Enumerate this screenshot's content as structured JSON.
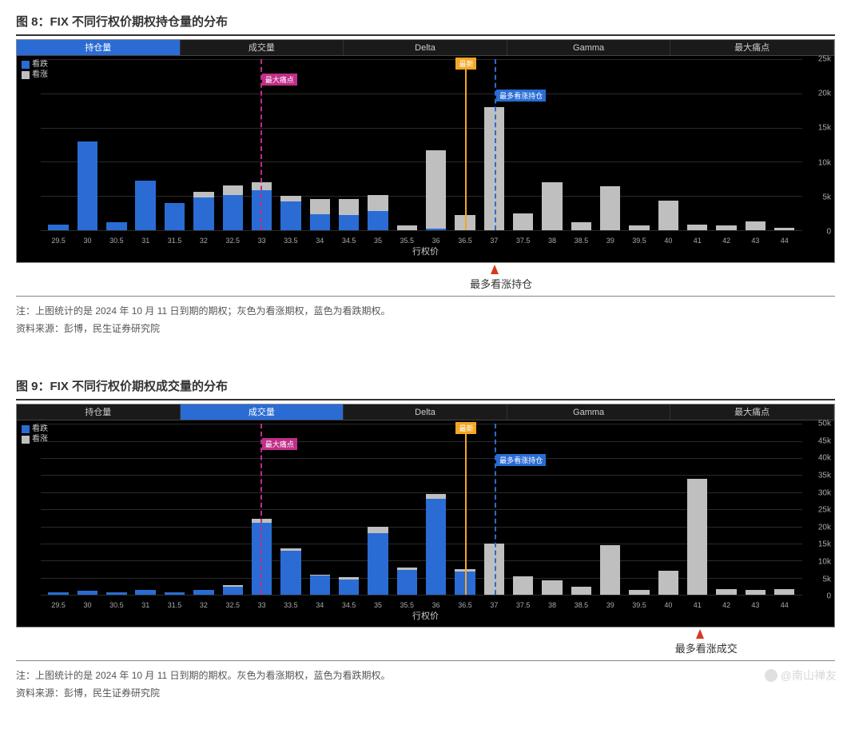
{
  "watermark": "@南山禅友",
  "colors": {
    "put": "#2a6cd4",
    "call": "#bfbfbf",
    "bg": "#000000",
    "grid": "#2a2a2a",
    "axis_text": "#aaaaaa",
    "max_pain_line": "#c02f8a",
    "latest_line": "#f5a623",
    "most_call_line": "#2a6cd4"
  },
  "tabs": [
    "持仓量",
    "成交量",
    "Delta",
    "Gamma",
    "最大痛点"
  ],
  "legend": {
    "put": "看跌",
    "call": "看涨"
  },
  "x_axis_label": "行权价",
  "fig8": {
    "title": "图 8：FIX 不同行权价期权持仓量的分布",
    "active_tab": 0,
    "y_max": 25000,
    "y_ticks": [
      0,
      5000,
      10000,
      15000,
      20000,
      25000
    ],
    "y_tick_labels": [
      "0",
      "5k",
      "10k",
      "15k",
      "20k",
      "25k"
    ],
    "strikes": [
      "29.5",
      "30",
      "30.5",
      "31",
      "31.5",
      "32",
      "32.5",
      "33",
      "33.5",
      "34",
      "34.5",
      "35",
      "35.5",
      "36",
      "36.5",
      "37",
      "37.5",
      "38",
      "38.5",
      "39",
      "39.5",
      "40",
      "41",
      "42",
      "43",
      "44"
    ],
    "put": [
      800,
      13000,
      1200,
      7200,
      4000,
      4800,
      5200,
      5800,
      4200,
      2300,
      2200,
      2800,
      0,
      200,
      0,
      0,
      0,
      0,
      0,
      0,
      0,
      0,
      0,
      0,
      0,
      0
    ],
    "call": [
      0,
      0,
      0,
      0,
      0,
      800,
      1400,
      1200,
      800,
      2200,
      2300,
      2300,
      700,
      11500,
      2200,
      18000,
      2400,
      7000,
      1200,
      6400,
      700,
      4300,
      800,
      700,
      1300,
      400
    ],
    "markers": {
      "max_pain": {
        "strike": "33",
        "label": "最大痛点"
      },
      "latest": {
        "strike": "36.5",
        "label": "最新"
      },
      "most_call": {
        "strike": "37",
        "label": "最多看涨持仓"
      }
    },
    "callout": {
      "strike": "37",
      "text": "最多看涨持仓"
    },
    "note": "注：上图统计的是 2024 年 10 月 11 日到期的期权；灰色为看涨期权，蓝色为看跌期权。",
    "source": "资料来源：彭博，民生证券研究院"
  },
  "fig9": {
    "title": "图 9：FIX 不同行权价期权成交量的分布",
    "active_tab": 1,
    "y_max": 50000,
    "y_ticks": [
      0,
      5000,
      10000,
      15000,
      20000,
      25000,
      30000,
      35000,
      40000,
      45000,
      50000
    ],
    "y_tick_labels": [
      "0",
      "5k",
      "10k",
      "15k",
      "20k",
      "25k",
      "30k",
      "35k",
      "40k",
      "45k",
      "50k"
    ],
    "strikes": [
      "29.5",
      "30",
      "30.5",
      "31",
      "31.5",
      "32",
      "32.5",
      "33",
      "33.5",
      "34",
      "34.5",
      "35",
      "35.5",
      "36",
      "36.5",
      "37",
      "37.5",
      "38",
      "38.5",
      "39",
      "39.5",
      "40",
      "41",
      "42",
      "43",
      "44"
    ],
    "put": [
      800,
      1300,
      700,
      1400,
      700,
      1500,
      2300,
      21000,
      13000,
      5600,
      4500,
      18000,
      7300,
      28000,
      6800,
      0,
      0,
      0,
      0,
      0,
      0,
      0,
      0,
      0,
      0,
      0
    ],
    "call": [
      0,
      0,
      0,
      0,
      0,
      0,
      500,
      1200,
      700,
      400,
      600,
      1800,
      600,
      1400,
      700,
      15000,
      5500,
      4200,
      2400,
      14500,
      1400,
      7000,
      34000,
      1600,
      1400,
      1600
    ],
    "markers": {
      "max_pain": {
        "strike": "33",
        "label": "最大痛点"
      },
      "latest": {
        "strike": "36.5",
        "label": "最新"
      },
      "most_call": {
        "strike": "37",
        "label": "最多看涨持仓"
      }
    },
    "callout": {
      "strike": "41",
      "text": "最多看涨成交"
    },
    "note": "注：上图统计的是 2024 年 10 月 11 日到期的期权。灰色为看涨期权，蓝色为看跌期权。",
    "source": "资料来源：彭博，民生证券研究院"
  }
}
